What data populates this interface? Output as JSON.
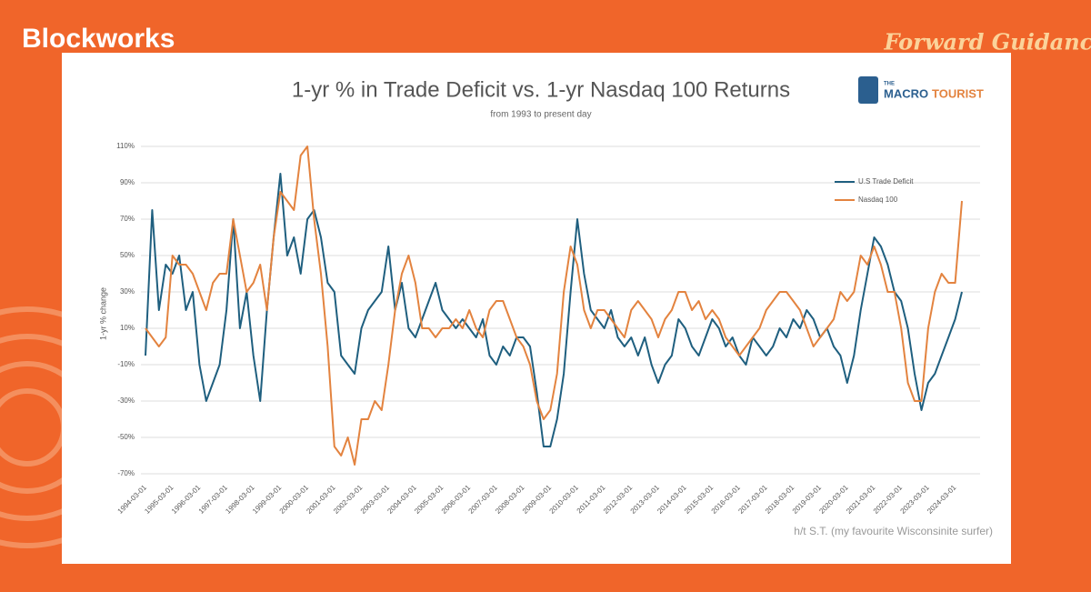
{
  "header": {
    "brand": "Blockworks",
    "show": "Forward Guidance"
  },
  "logo": {
    "prefix": "THE",
    "first": "MACRO",
    "second": "TOURIST"
  },
  "chart_data": {
    "type": "line",
    "title": "1-yr % in Trade Deficit vs. 1-yr Nasdaq 100 Returns",
    "subtitle": "from 1993 to present day",
    "y_label": "1-yr % change",
    "note": "h/t S.T. (my favourite Wisconsinite surfer)",
    "categories": [
      "1994-03-01",
      null,
      null,
      null,
      "1995-03-01",
      null,
      null,
      null,
      "1996-03-01",
      null,
      null,
      null,
      "1997-03-01",
      null,
      null,
      null,
      "1998-03-01",
      null,
      null,
      null,
      "1999-03-01",
      null,
      null,
      null,
      "2000-03-01",
      null,
      null,
      null,
      "2001-03-01",
      null,
      null,
      null,
      "2002-03-01",
      null,
      null,
      null,
      "2003-03-01",
      null,
      null,
      null,
      "2004-03-01",
      null,
      null,
      null,
      "2005-03-01",
      null,
      null,
      null,
      "2006-03-01",
      null,
      null,
      null,
      "2007-03-01",
      null,
      null,
      null,
      "2008-03-01",
      null,
      null,
      null,
      "2009-03-01",
      null,
      null,
      null,
      "2010-03-01",
      null,
      null,
      null,
      "2011-03-01",
      null,
      null,
      null,
      "2012-03-01",
      null,
      null,
      null,
      "2013-03-01",
      null,
      null,
      null,
      "2014-03-01",
      null,
      null,
      null,
      "2015-03-01",
      null,
      null,
      null,
      "2016-03-01",
      null,
      null,
      null,
      "2017-03-01",
      null,
      null,
      null,
      "2018-03-01",
      null,
      null,
      null,
      "2019-03-01",
      null,
      null,
      null,
      "2020-03-01",
      null,
      null,
      null,
      "2021-03-01",
      null,
      null,
      null,
      "2022-03-01",
      null,
      null,
      null,
      "2023-03-01",
      null,
      null,
      null,
      "2024-03-01",
      null
    ],
    "series": [
      {
        "name": "U.S Trade Deficit",
        "color": "#1f5f7f",
        "values": [
          -5,
          75,
          20,
          45,
          40,
          50,
          20,
          30,
          -10,
          -30,
          -20,
          -10,
          20,
          70,
          10,
          30,
          -5,
          -30,
          20,
          60,
          95,
          50,
          60,
          40,
          70,
          75,
          60,
          35,
          30,
          -5,
          -10,
          -15,
          10,
          20,
          25,
          30,
          55,
          20,
          35,
          10,
          5,
          15,
          25,
          35,
          20,
          15,
          10,
          15,
          10,
          5,
          15,
          -5,
          -10,
          0,
          -5,
          5,
          5,
          0,
          -25,
          -55,
          -55,
          -40,
          -15,
          30,
          70,
          40,
          20,
          15,
          10,
          20,
          5,
          0,
          5,
          -5,
          5,
          -10,
          -20,
          -10,
          -5,
          15,
          10,
          0,
          -5,
          5,
          15,
          10,
          0,
          5,
          -5,
          -10,
          5,
          0,
          -5,
          0,
          10,
          5,
          15,
          10,
          20,
          15,
          5,
          10,
          0,
          -5,
          -20,
          -5,
          20,
          40,
          60,
          55,
          45,
          30,
          25,
          10,
          -15,
          -35,
          -20,
          -15,
          -5,
          5,
          15,
          30
        ]
      },
      {
        "name": "Nasdaq 100",
        "color": "#e3833f",
        "values": [
          10,
          5,
          0,
          5,
          50,
          45,
          45,
          40,
          30,
          20,
          35,
          40,
          40,
          70,
          50,
          30,
          35,
          45,
          20,
          60,
          85,
          80,
          75,
          105,
          110,
          70,
          40,
          0,
          -55,
          -60,
          -50,
          -65,
          -40,
          -40,
          -30,
          -35,
          -10,
          20,
          40,
          50,
          35,
          10,
          10,
          5,
          10,
          10,
          15,
          10,
          20,
          10,
          5,
          20,
          25,
          25,
          15,
          5,
          0,
          -10,
          -30,
          -40,
          -35,
          -15,
          30,
          55,
          45,
          20,
          10,
          20,
          20,
          15,
          10,
          5,
          20,
          25,
          20,
          15,
          5,
          15,
          20,
          30,
          30,
          20,
          25,
          15,
          20,
          15,
          5,
          0,
          -5,
          0,
          5,
          10,
          20,
          25,
          30,
          30,
          25,
          20,
          10,
          0,
          5,
          10,
          15,
          30,
          25,
          30,
          50,
          45,
          55,
          45,
          30,
          30,
          10,
          -20,
          -30,
          -30,
          10,
          30,
          40,
          35,
          35,
          80
        ]
      }
    ],
    "ylim": [
      -70,
      120
    ],
    "yticks": [
      {
        "value": -70,
        "label": "-70%"
      },
      {
        "value": -50,
        "label": "-50%"
      },
      {
        "value": -30,
        "label": "-30%"
      },
      {
        "value": -10,
        "label": "-10%"
      },
      {
        "value": 10,
        "label": "10%"
      },
      {
        "value": 30,
        "label": "30%"
      },
      {
        "value": 50,
        "label": "50%"
      },
      {
        "value": 70,
        "label": "70%"
      },
      {
        "value": 90,
        "label": "90%"
      },
      {
        "value": 110,
        "label": "110%"
      }
    ],
    "grid": true
  }
}
